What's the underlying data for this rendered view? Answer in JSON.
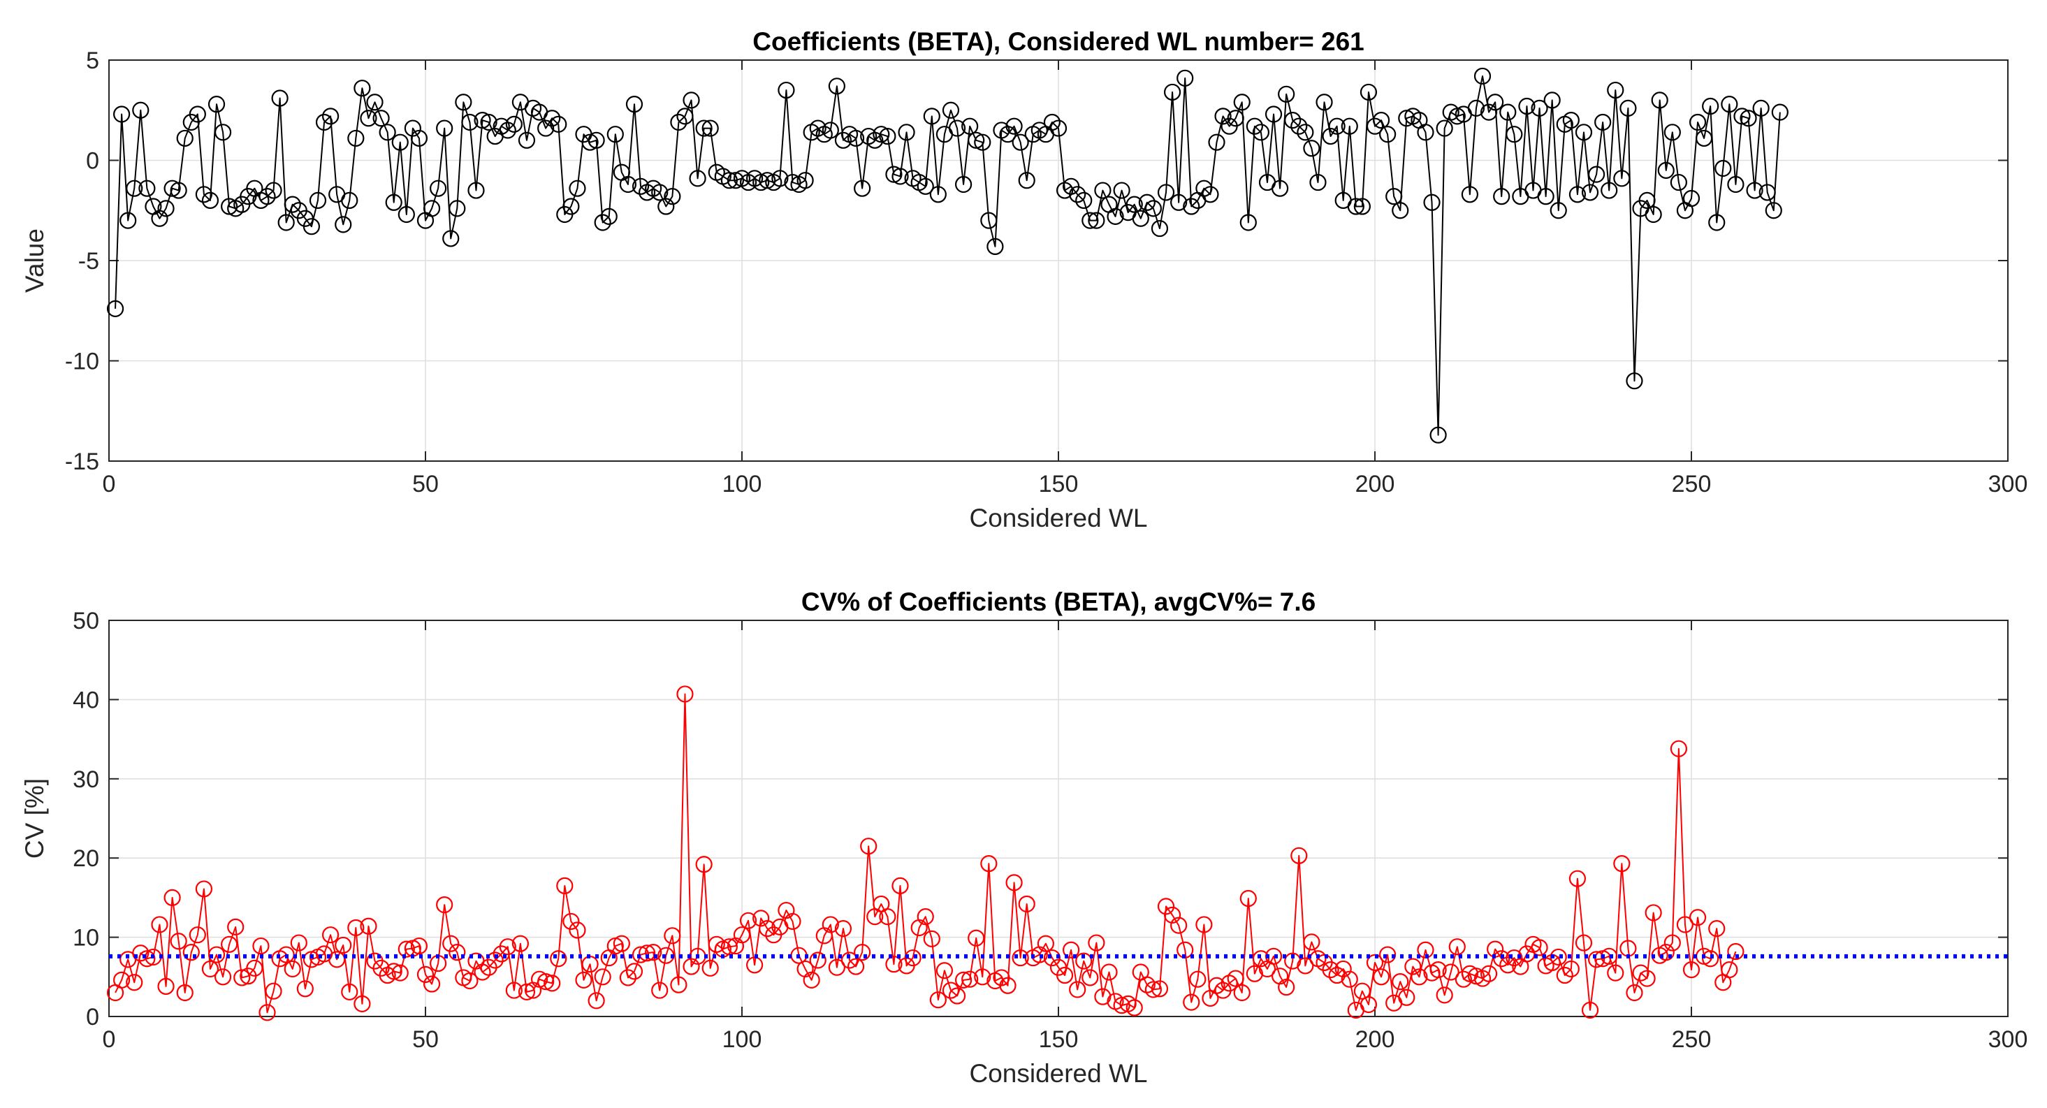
{
  "chart_data": [
    {
      "type": "line",
      "title": "Coefficients (BETA), Considered WL number= 261",
      "xlabel": "Considered WL",
      "ylabel": "Value",
      "xlim": [
        0,
        300
      ],
      "ylim": [
        -15,
        5
      ],
      "xticks": [
        "0",
        "50",
        "100",
        "150",
        "200",
        "250",
        "300"
      ],
      "yticks": [
        "5",
        "0",
        "-5",
        "-10",
        "-15"
      ],
      "grid": true,
      "marker": "circle",
      "color": "#000000",
      "series": [
        {
          "name": "BETA",
          "x_start": 1,
          "values": [
            -7.4,
            2.3,
            -3.0,
            -1.4,
            2.5,
            -1.4,
            -2.3,
            -2.9,
            -2.4,
            -1.4,
            -1.5,
            1.1,
            1.9,
            2.3,
            -1.7,
            -2.0,
            2.8,
            1.4,
            -2.3,
            -2.4,
            -2.2,
            -1.8,
            -1.4,
            -2.0,
            -1.8,
            -1.5,
            3.1,
            -3.1,
            -2.2,
            -2.5,
            -2.9,
            -3.3,
            -2.0,
            1.9,
            2.2,
            -1.7,
            -3.2,
            -2.0,
            1.1,
            3.6,
            2.1,
            2.9,
            2.1,
            1.4,
            -2.1,
            0.9,
            -2.7,
            1.6,
            1.1,
            -3.0,
            -2.4,
            -1.4,
            1.6,
            -3.9,
            -2.4,
            2.9,
            1.9,
            -1.5,
            2.0,
            1.9,
            1.2,
            1.7,
            1.5,
            1.8,
            2.9,
            1.0,
            2.6,
            2.4,
            1.6,
            2.1,
            1.8,
            -2.7,
            -2.3,
            -1.4,
            1.3,
            0.9,
            1.0,
            -3.1,
            -2.8,
            1.3,
            -0.6,
            -1.2,
            2.8,
            -1.3,
            -1.6,
            -1.4,
            -1.6,
            -2.3,
            -1.8,
            1.9,
            2.2,
            3.0,
            -0.9,
            1.6,
            1.6,
            -0.6,
            -0.8,
            -1.0,
            -1.0,
            -0.9,
            -1.1,
            -0.9,
            -1.1,
            -1.0,
            -1.1,
            -0.9,
            3.5,
            -1.1,
            -1.2,
            -1.0,
            1.4,
            1.6,
            1.3,
            1.5,
            3.7,
            1.0,
            1.3,
            1.1,
            -1.4,
            1.2,
            1.0,
            1.3,
            1.2,
            -0.7,
            -0.8,
            1.4,
            -0.9,
            -1.1,
            -1.3,
            2.2,
            -1.7,
            1.3,
            2.5,
            1.6,
            -1.2,
            1.7,
            1.0,
            0.9,
            -3.0,
            -4.3,
            1.5,
            1.3,
            1.7,
            0.9,
            -1.0,
            1.3,
            1.5,
            1.3,
            1.9,
            1.6,
            -1.5,
            -1.3,
            -1.7,
            -2.0,
            -3.0,
            -3.0,
            -1.5,
            -2.2,
            -2.8,
            -1.5,
            -2.6,
            -2.2,
            -2.9,
            -2.1,
            -2.4,
            -3.4,
            -1.6,
            3.4,
            -2.1,
            4.1,
            -2.3,
            -2.0,
            -1.4,
            -1.7,
            0.9,
            2.2,
            1.7,
            2.1,
            2.9,
            -3.1,
            1.7,
            1.4,
            -1.1,
            2.3,
            -1.4,
            3.3,
            2.0,
            1.7,
            1.4,
            0.6,
            -1.1,
            2.9,
            1.2,
            1.7,
            -2.0,
            1.7,
            -2.3,
            -2.3,
            3.4,
            1.7,
            2.0,
            1.3,
            -1.8,
            -2.5,
            2.1,
            2.2,
            2.0,
            1.4,
            -2.1,
            -13.7,
            1.6,
            2.4,
            2.2,
            2.3,
            -1.7,
            2.6,
            4.2,
            2.4,
            2.9,
            -1.8,
            2.4,
            1.3,
            -1.8,
            2.7,
            -1.5,
            2.6,
            -1.8,
            3.0,
            -2.5,
            1.8,
            2.0,
            -1.7,
            1.4,
            -1.6,
            -0.7,
            1.9,
            -1.5,
            3.5,
            -0.9,
            2.6,
            -11.0,
            -2.4,
            -2.0,
            -2.7,
            3.0,
            -0.5,
            1.4,
            -1.1,
            -2.5,
            -1.9,
            1.9,
            1.1,
            2.7,
            -3.1,
            -0.4,
            2.8,
            -1.2,
            2.2,
            2.1,
            -1.5,
            2.6,
            -1.6,
            -2.5,
            2.4
          ]
        }
      ]
    },
    {
      "type": "line",
      "title": "CV% of Coefficients (BETA), avgCV%= 7.6",
      "xlabel": "Considered WL",
      "ylabel": "CV [%]",
      "xlim": [
        0,
        300
      ],
      "ylim": [
        0,
        50
      ],
      "xticks": [
        "0",
        "50",
        "100",
        "150",
        "200",
        "250",
        "300"
      ],
      "yticks": [
        "50",
        "40",
        "30",
        "20",
        "10",
        "0"
      ],
      "grid": true,
      "marker": "circle",
      "color": "#ff0000",
      "avg_line": {
        "value": 7.6,
        "color": "#0000ff",
        "style": "dotted"
      },
      "series": [
        {
          "name": "CV%",
          "x_start": 1,
          "values": [
            3.0,
            4.6,
            7.2,
            4.3,
            8.0,
            7.3,
            7.5,
            11.6,
            3.8,
            15.0,
            9.5,
            3.0,
            8.1,
            10.3,
            16.1,
            6.0,
            7.8,
            5.0,
            9.1,
            11.3,
            4.9,
            5.1,
            6.1,
            8.9,
            0.5,
            3.2,
            7.3,
            7.8,
            6.0,
            9.3,
            3.5,
            7.2,
            7.5,
            7.9,
            10.3,
            7.2,
            9.0,
            3.1,
            11.2,
            1.6,
            11.4,
            7.0,
            6.1,
            5.2,
            5.7,
            5.5,
            8.5,
            8.6,
            8.9,
            5.3,
            4.1,
            6.7,
            14.1,
            9.2,
            8.1,
            4.9,
            4.5,
            7.0,
            5.6,
            6.2,
            7.1,
            7.9,
            8.8,
            3.3,
            9.2,
            3.1,
            3.3,
            4.7,
            4.4,
            4.2,
            7.3,
            16.5,
            12.0,
            10.9,
            4.6,
            6.6,
            2.0,
            5.0,
            7.4,
            8.9,
            9.2,
            4.9,
            5.7,
            7.8,
            8.0,
            8.1,
            3.3,
            7.7,
            10.2,
            4.0,
            40.7,
            6.3,
            7.6,
            19.2,
            6.1,
            9.1,
            8.5,
            8.8,
            8.9,
            10.3,
            12.1,
            6.5,
            12.4,
            11.1,
            10.3,
            11.3,
            13.4,
            12.0,
            7.7,
            6.0,
            4.6,
            7.1,
            10.2,
            11.6,
            6.2,
            11.1,
            7.1,
            6.3,
            8.1,
            21.5,
            12.6,
            14.2,
            12.6,
            6.6,
            16.5,
            6.4,
            7.4,
            11.2,
            12.6,
            9.8,
            2.1,
            5.8,
            3.3,
            2.6,
            4.6,
            4.7,
            9.9,
            5.0,
            19.3,
            4.5,
            4.9,
            3.9,
            16.9,
            7.4,
            14.2,
            7.4,
            7.8,
            9.2,
            7.4,
            6.2,
            5.2,
            8.4,
            3.4,
            7.0,
            4.9,
            9.3,
            2.5,
            5.6,
            1.9,
            1.4,
            1.6,
            1.1,
            5.6,
            4.0,
            3.4,
            3.5,
            13.9,
            12.8,
            11.5,
            8.4,
            1.8,
            4.7,
            11.6,
            2.3,
            3.9,
            3.3,
            4.2,
            4.8,
            3.0,
            14.9,
            5.4,
            7.3,
            6.0,
            7.6,
            5.1,
            3.7,
            7.0,
            20.3,
            6.4,
            9.4,
            7.3,
            6.8,
            5.9,
            5.2,
            6.0,
            4.7,
            0.8,
            3.2,
            1.5,
            6.8,
            5.0,
            7.8,
            1.7,
            4.4,
            2.4,
            6.3,
            5.0,
            8.4,
            5.5,
            5.9,
            2.7,
            5.6,
            8.8,
            4.7,
            5.4,
            5.1,
            4.8,
            5.4,
            8.5,
            7.3,
            6.5,
            7.4,
            6.3,
            7.9,
            9.1,
            8.7,
            6.4,
            6.8,
            7.5,
            5.2,
            6.0,
            17.4,
            9.3,
            0.8,
            7.2,
            7.3,
            7.6,
            5.5,
            19.3,
            8.6,
            3.0,
            5.5,
            4.8,
            13.1,
            7.7,
            8.1,
            9.3,
            33.8,
            11.6,
            5.9,
            12.5,
            7.6,
            7.3,
            11.1,
            4.3,
            5.9,
            8.2
          ]
        }
      ]
    }
  ]
}
